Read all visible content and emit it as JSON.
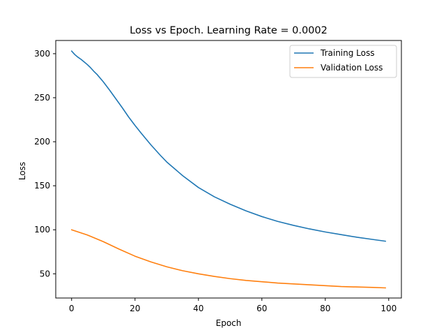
{
  "chart_data": {
    "type": "line",
    "title": "Loss vs Epoch. Learning Rate = 0.0002",
    "xlabel": "Epoch",
    "ylabel": "Loss",
    "xlim": [
      -5,
      104
    ],
    "ylim": [
      22.5,
      315
    ],
    "xticks": [
      0,
      20,
      40,
      60,
      80,
      100
    ],
    "yticks": [
      50,
      100,
      150,
      200,
      250,
      300
    ],
    "grid": false,
    "legend_position": "top-right",
    "series": [
      {
        "name": "Training Loss",
        "color": "#1f77b4",
        "x": [
          0,
          1,
          2,
          3,
          4,
          5,
          6,
          7,
          8,
          10,
          12,
          14,
          16,
          18,
          20,
          22,
          25,
          28,
          30,
          35,
          40,
          45,
          50,
          55,
          60,
          65,
          70,
          75,
          80,
          85,
          90,
          95,
          99
        ],
        "y": [
          303,
          299,
          296,
          293.5,
          290.5,
          287.5,
          284,
          280,
          276.5,
          268,
          258.5,
          248.5,
          238.5,
          228,
          218.5,
          209.5,
          196.5,
          184.5,
          177,
          161.5,
          148,
          137.5,
          129,
          121.5,
          115,
          109.5,
          105,
          101,
          97.5,
          94.5,
          91.5,
          89,
          87
        ]
      },
      {
        "name": "Validation Loss",
        "color": "#ff7f0e",
        "x": [
          0,
          5,
          10,
          15,
          20,
          25,
          30,
          35,
          40,
          45,
          50,
          55,
          60,
          65,
          70,
          75,
          80,
          85,
          90,
          95,
          99
        ],
        "y": [
          100,
          94,
          86.5,
          78,
          70,
          63.5,
          58,
          53.5,
          50,
          47,
          44.5,
          42.5,
          41,
          39.5,
          38.5,
          37.5,
          36.5,
          35.5,
          35,
          34.5,
          34
        ]
      }
    ]
  }
}
